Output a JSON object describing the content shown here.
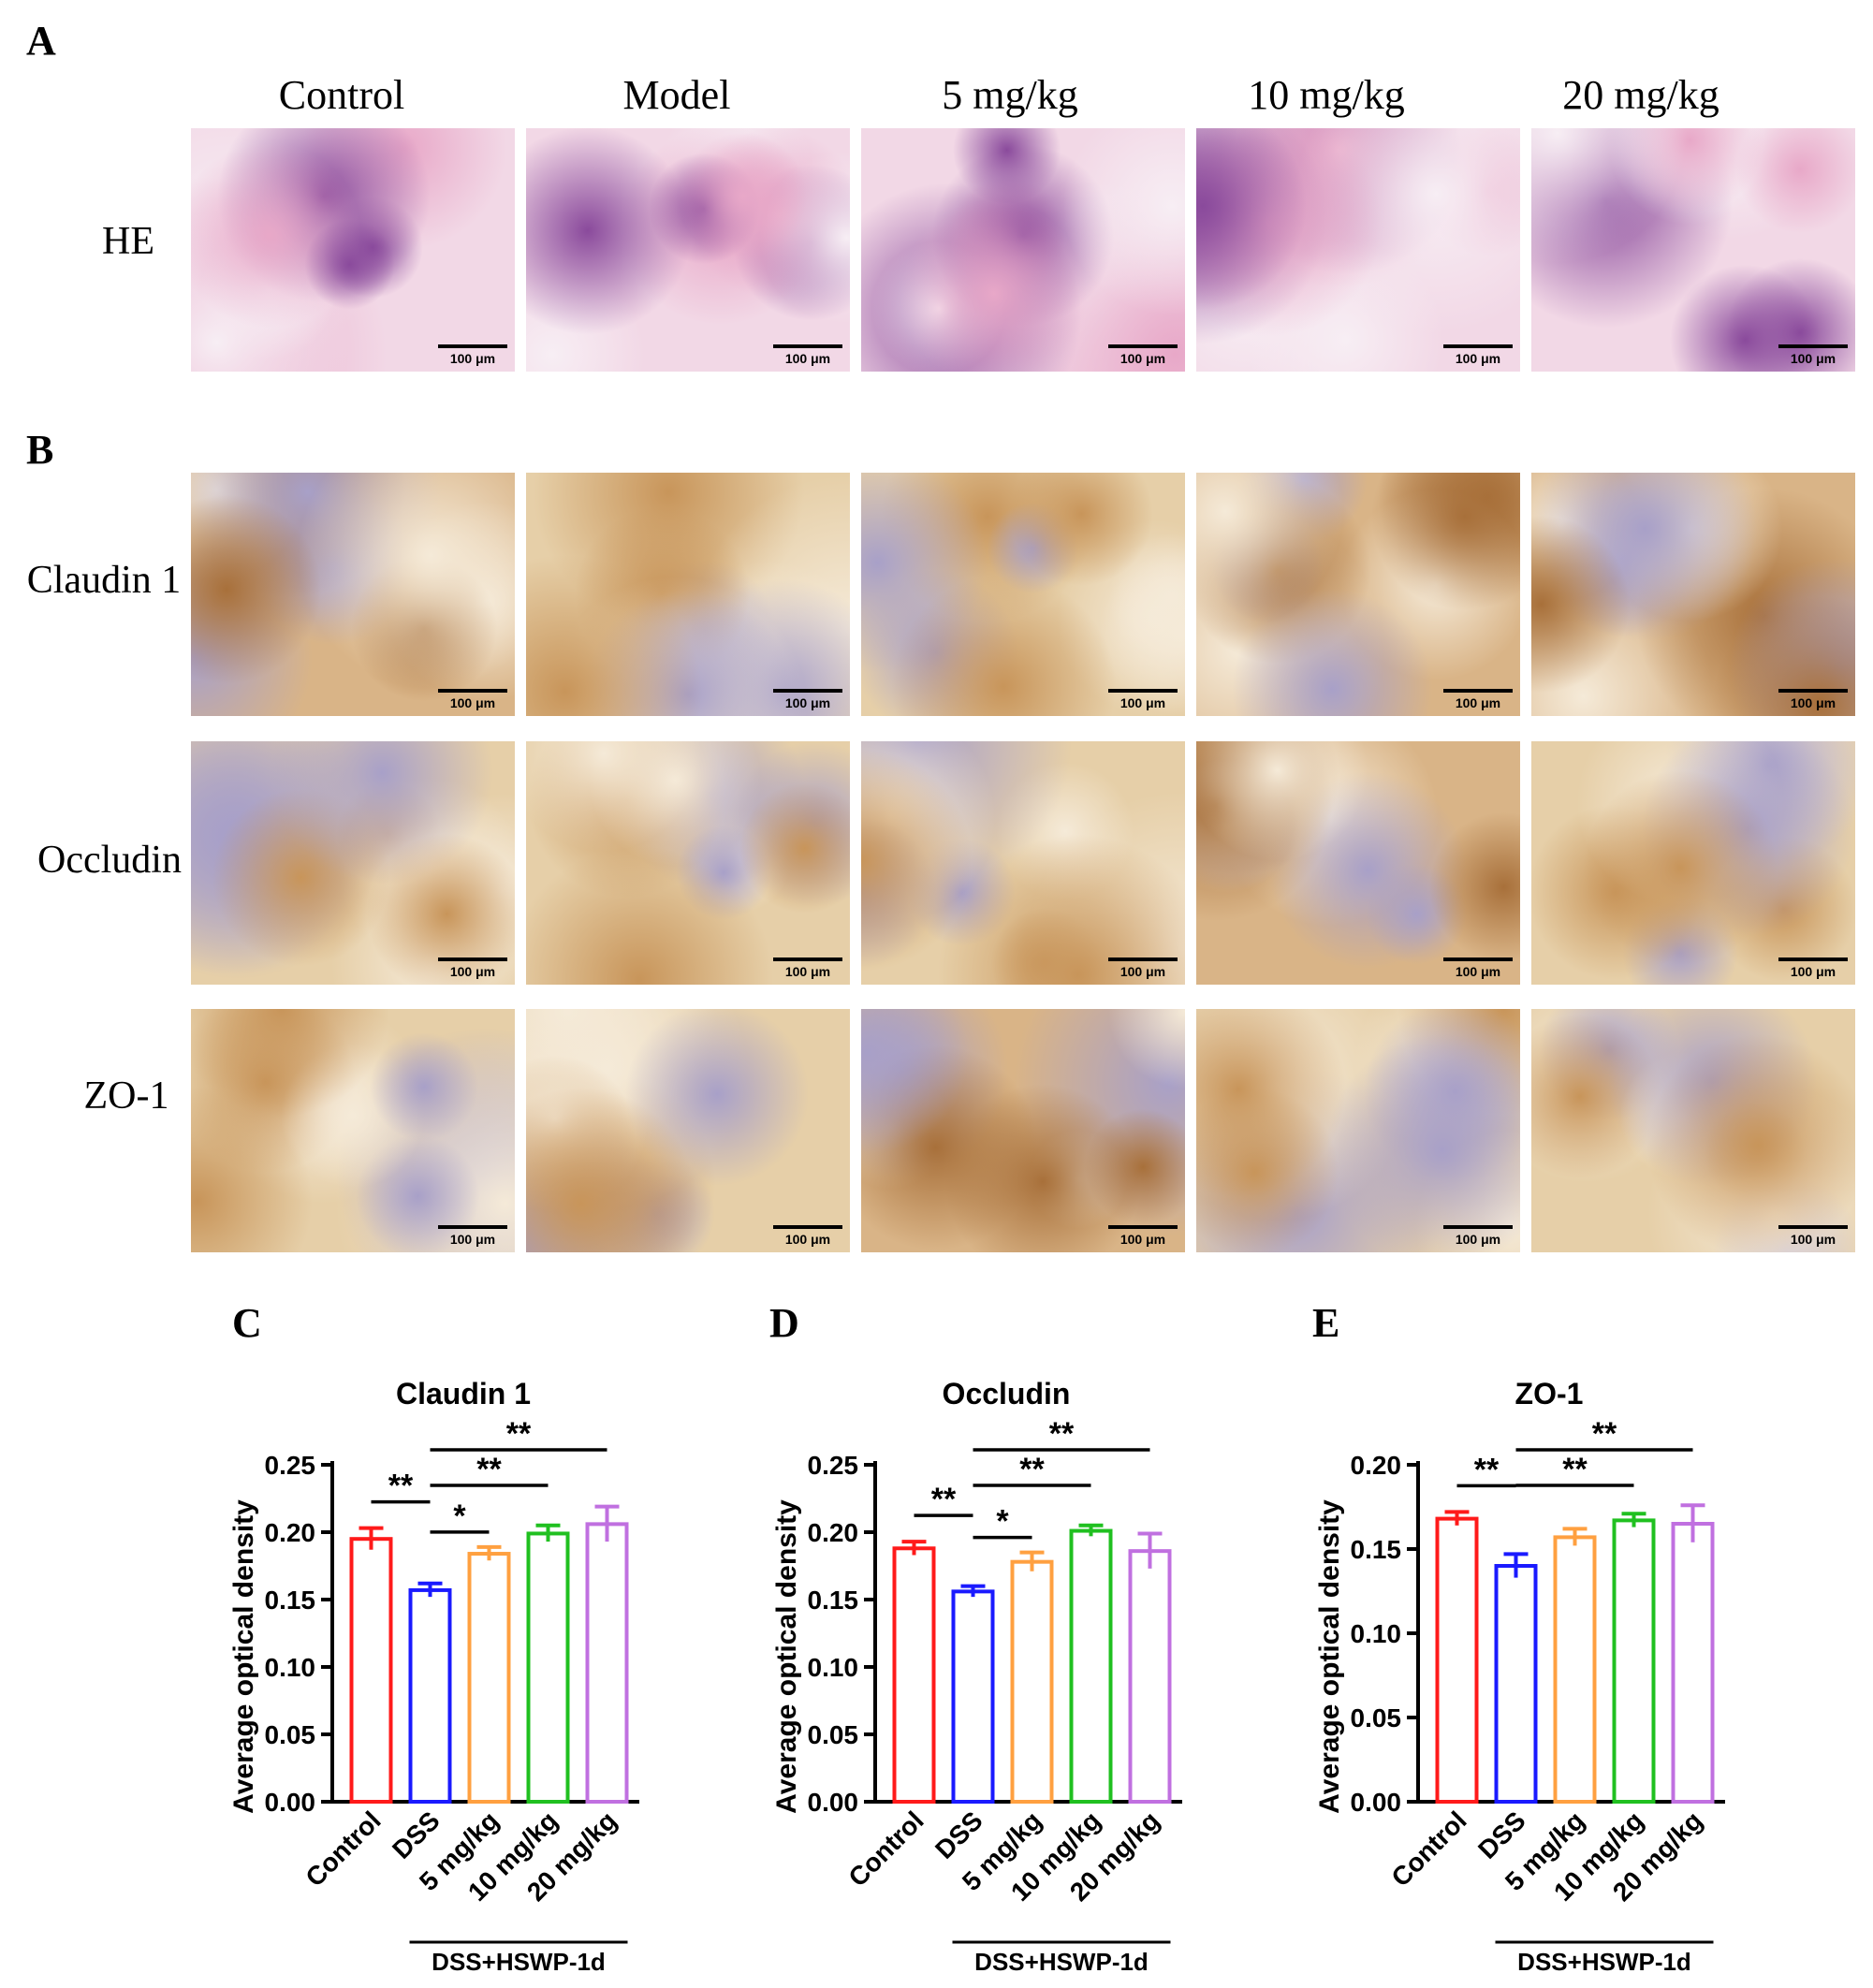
{
  "panels": {
    "A": "A",
    "B": "B",
    "C": "C",
    "D": "D",
    "E": "E"
  },
  "micrographs": {
    "column_headers": [
      "Control",
      "Model",
      "5 mg/kg",
      "10 mg/kg",
      "20 mg/kg"
    ],
    "row_headers": [
      "HE",
      "Claudin 1",
      "Occludin",
      "ZO-1"
    ],
    "scale_bar_label": "100 μm",
    "stain_colors": {
      "he_pink": "#e8a8c8",
      "he_purple": "#8a4a9c",
      "ihc_brown": "#c8955a",
      "ihc_tan": "#e6cfa8",
      "ihc_blue": "#a8a0c8"
    }
  },
  "chart_data": [
    {
      "type": "bar",
      "panel": "C",
      "title": "Claudin 1",
      "ylabel": "Average optical density",
      "categories": [
        "Control",
        "DSS",
        "5 mg/kg",
        "10 mg/kg",
        "20 mg/kg"
      ],
      "values": [
        0.195,
        0.157,
        0.184,
        0.199,
        0.206
      ],
      "errors": [
        0.008,
        0.005,
        0.005,
        0.006,
        0.013
      ],
      "colors": [
        "#ff1a1a",
        "#1a1aff",
        "#ffa040",
        "#20c020",
        "#c070e0"
      ],
      "ylim": [
        0,
        0.25
      ],
      "yticks": [
        "0.00",
        "0.05",
        "0.10",
        "0.15",
        "0.20",
        "0.25"
      ],
      "group_label": "DSS+HSWP-1d",
      "significance": [
        {
          "from": 0,
          "to": 1,
          "label": "**",
          "level": 0
        },
        {
          "from": 1,
          "to": 2,
          "label": "*",
          "level": 0
        },
        {
          "from": 1,
          "to": 3,
          "label": "**",
          "level": 1
        },
        {
          "from": 1,
          "to": 4,
          "label": "**",
          "level": 2
        }
      ]
    },
    {
      "type": "bar",
      "panel": "D",
      "title": "Occludin",
      "ylabel": "Average optical density",
      "categories": [
        "Control",
        "DSS",
        "5 mg/kg",
        "10 mg/kg",
        "20 mg/kg"
      ],
      "values": [
        0.188,
        0.156,
        0.178,
        0.201,
        0.186
      ],
      "errors": [
        0.005,
        0.004,
        0.007,
        0.004,
        0.013
      ],
      "colors": [
        "#ff1a1a",
        "#1a1aff",
        "#ffa040",
        "#20c020",
        "#c070e0"
      ],
      "ylim": [
        0,
        0.25
      ],
      "yticks": [
        "0.00",
        "0.05",
        "0.10",
        "0.15",
        "0.20",
        "0.25"
      ],
      "group_label": "DSS+HSWP-1d",
      "significance": [
        {
          "from": 0,
          "to": 1,
          "label": "**",
          "level": 0
        },
        {
          "from": 1,
          "to": 2,
          "label": "*",
          "level": 0
        },
        {
          "from": 1,
          "to": 3,
          "label": "**",
          "level": 1
        },
        {
          "from": 1,
          "to": 4,
          "label": "**",
          "level": 2
        }
      ]
    },
    {
      "type": "bar",
      "panel": "E",
      "title": "ZO-1",
      "ylabel": "Average optical density",
      "categories": [
        "Control",
        "DSS",
        "5 mg/kg",
        "10 mg/kg",
        "20 mg/kg"
      ],
      "values": [
        0.168,
        0.14,
        0.157,
        0.167,
        0.165
      ],
      "errors": [
        0.004,
        0.007,
        0.005,
        0.004,
        0.011
      ],
      "colors": [
        "#ff1a1a",
        "#1a1aff",
        "#ffa040",
        "#20c020",
        "#c070e0"
      ],
      "ylim": [
        0,
        0.2
      ],
      "yticks": [
        "0.00",
        "0.05",
        "0.10",
        "0.15",
        "0.20"
      ],
      "group_label": "DSS+HSWP-1d",
      "significance": [
        {
          "from": 0,
          "to": 1,
          "label": "**",
          "level": 0
        },
        {
          "from": 1,
          "to": 3,
          "label": "**",
          "level": 1
        },
        {
          "from": 1,
          "to": 4,
          "label": "**",
          "level": 2
        }
      ]
    }
  ]
}
